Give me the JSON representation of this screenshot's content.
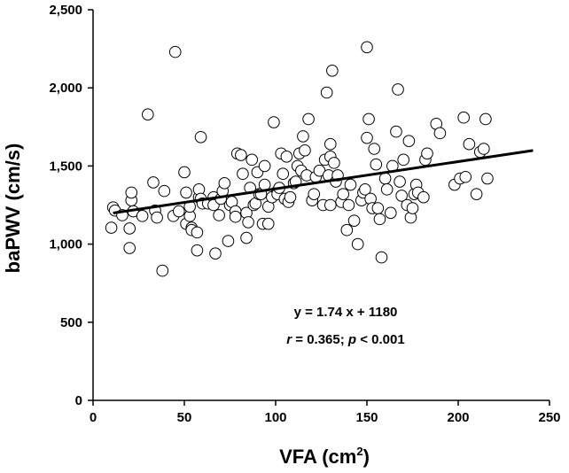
{
  "chart_data": {
    "type": "scatter",
    "xlabel": "VFA (cm",
    "xlabel_sup": "2",
    "xlabel_close": ")",
    "ylabel": "baPWV (cm/s)",
    "xlim": [
      0,
      250
    ],
    "ylim": [
      0,
      2500
    ],
    "xticks": [
      0,
      50,
      100,
      150,
      200,
      250
    ],
    "xtick_labels": [
      "0",
      "50",
      "100",
      "150",
      "200",
      "250"
    ],
    "yticks": [
      0,
      500,
      1000,
      1500,
      2000,
      2500
    ],
    "ytick_labels": [
      "0",
      "500",
      "1,000",
      "1,500",
      "2,000",
      "2,500"
    ],
    "grid": false,
    "regression": {
      "slope": 1.74,
      "intercept": 1180,
      "x_range": [
        11,
        241
      ],
      "equation_label": "y = 1.74 x + 1180",
      "stats_r_symbol": "r",
      "stats_r_text": " = 0.365; ",
      "stats_p_symbol": "p",
      "stats_p_text": " < 0.001"
    },
    "points": [
      [
        10,
        1105
      ],
      [
        11,
        1235
      ],
      [
        12,
        1215
      ],
      [
        16,
        1185
      ],
      [
        20,
        975
      ],
      [
        20,
        1100
      ],
      [
        21,
        1280
      ],
      [
        21,
        1330
      ],
      [
        22,
        1210
      ],
      [
        27,
        1180
      ],
      [
        30,
        1830
      ],
      [
        33,
        1395
      ],
      [
        34,
        1215
      ],
      [
        35,
        1170
      ],
      [
        38,
        830
      ],
      [
        39,
        1340
      ],
      [
        44,
        1180
      ],
      [
        45,
        2230
      ],
      [
        47,
        1210
      ],
      [
        50,
        1460
      ],
      [
        51,
        1130
      ],
      [
        51,
        1330
      ],
      [
        53,
        1180
      ],
      [
        53,
        1240
      ],
      [
        54,
        1105
      ],
      [
        54,
        1090
      ],
      [
        57,
        960
      ],
      [
        57,
        1075
      ],
      [
        58,
        1300
      ],
      [
        58,
        1350
      ],
      [
        59,
        1290
      ],
      [
        59,
        1685
      ],
      [
        60,
        1260
      ],
      [
        63,
        1260
      ],
      [
        66,
        1300
      ],
      [
        66,
        1250
      ],
      [
        67,
        940
      ],
      [
        69,
        1185
      ],
      [
        70,
        1290
      ],
      [
        71,
        1340
      ],
      [
        72,
        1390
      ],
      [
        74,
        1020
      ],
      [
        75,
        1250
      ],
      [
        76,
        1270
      ],
      [
        78,
        1210
      ],
      [
        78,
        1175
      ],
      [
        79,
        1580
      ],
      [
        81,
        1570
      ],
      [
        82,
        1450
      ],
      [
        84,
        1200
      ],
      [
        84,
        1040
      ],
      [
        85,
        1140
      ],
      [
        86,
        1360
      ],
      [
        87,
        1540
      ],
      [
        88,
        1250
      ],
      [
        89,
        1260
      ],
      [
        90,
        1460
      ],
      [
        91,
        1320
      ],
      [
        92,
        1320
      ],
      [
        93,
        1130
      ],
      [
        94,
        1500
      ],
      [
        94,
        1380
      ],
      [
        96,
        1240
      ],
      [
        96,
        1130
      ],
      [
        98,
        1300
      ],
      [
        99,
        1780
      ],
      [
        101,
        1340
      ],
      [
        101,
        1320
      ],
      [
        102,
        1360
      ],
      [
        103,
        1580
      ],
      [
        104,
        1450
      ],
      [
        105,
        1290
      ],
      [
        106,
        1560
      ],
      [
        107,
        1270
      ],
      [
        108,
        1300
      ],
      [
        110,
        1390
      ],
      [
        111,
        1400
      ],
      [
        112,
        1500
      ],
      [
        113,
        1580
      ],
      [
        114,
        1470
      ],
      [
        115,
        1690
      ],
      [
        116,
        1600
      ],
      [
        117,
        1440
      ],
      [
        118,
        1800
      ],
      [
        120,
        1280
      ],
      [
        121,
        1320
      ],
      [
        122,
        1430
      ],
      [
        124,
        1470
      ],
      [
        126,
        1250
      ],
      [
        127,
        1540
      ],
      [
        128,
        1970
      ],
      [
        129,
        1440
      ],
      [
        130,
        1640
      ],
      [
        130,
        1560
      ],
      [
        131,
        2110
      ],
      [
        132,
        1520
      ],
      [
        133,
        1400
      ],
      [
        134,
        1440
      ],
      [
        136,
        1270
      ],
      [
        137,
        1320
      ],
      [
        139,
        1090
      ],
      [
        140,
        1250
      ],
      [
        141,
        1380
      ],
      [
        143,
        1150
      ],
      [
        145,
        1000
      ],
      [
        147,
        1280
      ],
      [
        148,
        1330
      ],
      [
        149,
        1350
      ],
      [
        150,
        2260
      ],
      [
        150,
        1680
      ],
      [
        151,
        1800
      ],
      [
        152,
        1290
      ],
      [
        153,
        1230
      ],
      [
        154,
        1610
      ],
      [
        155,
        1510
      ],
      [
        156,
        1230
      ],
      [
        157,
        1160
      ],
      [
        158,
        915
      ],
      [
        160,
        1420
      ],
      [
        161,
        1350
      ],
      [
        163,
        1200
      ],
      [
        164,
        1500
      ],
      [
        166,
        1720
      ],
      [
        167,
        1990
      ],
      [
        168,
        1400
      ],
      [
        169,
        1310
      ],
      [
        170,
        1540
      ],
      [
        172,
        1250
      ],
      [
        173,
        1660
      ],
      [
        174,
        1170
      ],
      [
        176,
        1320
      ],
      [
        177,
        1380
      ],
      [
        178,
        1330
      ],
      [
        181,
        1300
      ],
      [
        182,
        1540
      ],
      [
        183,
        1580
      ],
      [
        188,
        1770
      ],
      [
        190,
        1710
      ],
      [
        198,
        1380
      ],
      [
        201,
        1420
      ],
      [
        203,
        1810
      ],
      [
        204,
        1430
      ],
      [
        206,
        1640
      ],
      [
        210,
        1320
      ],
      [
        212,
        1590
      ],
      [
        214,
        1610
      ],
      [
        215,
        1800
      ],
      [
        216,
        1420
      ],
      [
        175,
        1230
      ],
      [
        130,
        1250
      ]
    ]
  }
}
